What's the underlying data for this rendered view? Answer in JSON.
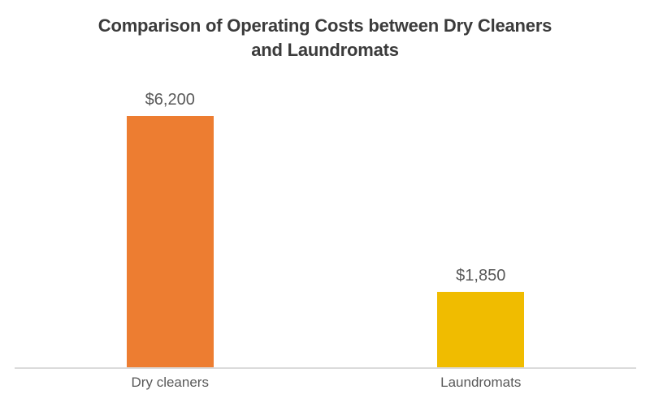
{
  "title_lines": {
    "line1": "Comparison of Operating Costs between Dry Cleaners",
    "line2": "and Laundromats"
  },
  "chart_data": {
    "type": "bar",
    "title": "Comparison of Operating Costs between Dry Cleaners and Laundromats",
    "categories": [
      "Dry cleaners",
      "Laundromats"
    ],
    "values": [
      6200,
      1850
    ],
    "value_labels": [
      "$6,200",
      "$1,850"
    ],
    "series_colors": [
      "#ED7D31",
      "#F0BC00"
    ],
    "xlabel": "",
    "ylabel": "",
    "ylim": [
      0,
      6200
    ],
    "grid": false,
    "legend": false,
    "data_label_position": "outside-end",
    "axis_line_color": "#DBDBDB",
    "label_text_color": "#595959",
    "title_color": "#3B3B3B",
    "background_color": "#FFFFFF"
  }
}
